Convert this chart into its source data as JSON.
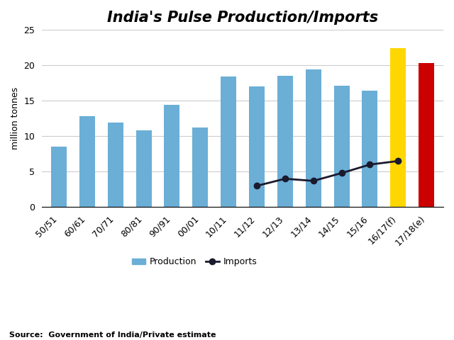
{
  "categories": [
    "50/51",
    "60/61",
    "70/71",
    "80/81",
    "90/91",
    "00/01",
    "10/11",
    "11/12",
    "12/13",
    "13/14",
    "14/15",
    "15/16",
    "16/17(f)",
    "17/18(e)"
  ],
  "production": [
    8.5,
    12.8,
    11.9,
    10.8,
    14.4,
    11.2,
    18.4,
    17.0,
    18.5,
    19.4,
    17.1,
    16.4,
    22.4,
    20.3
  ],
  "bar_colors": [
    "#6baed6",
    "#6baed6",
    "#6baed6",
    "#6baed6",
    "#6baed6",
    "#6baed6",
    "#6baed6",
    "#6baed6",
    "#6baed6",
    "#6baed6",
    "#6baed6",
    "#6baed6",
    "#FFD700",
    "#CC0000"
  ],
  "imports_x": [
    7,
    8,
    9,
    10,
    11,
    12
  ],
  "imports_y": [
    3.0,
    4.0,
    3.7,
    4.8,
    6.0,
    6.5
  ],
  "title": "India's Pulse Production/Imports",
  "ylabel": "million tonnes",
  "source_text": "Source:  Government of India/Private estimate",
  "ylim": [
    0,
    25
  ],
  "yticks": [
    0,
    5,
    10,
    15,
    20,
    25
  ],
  "production_legend_color": "#6baed6",
  "imports_line_color": "#1a1a2e",
  "background_color": "#ffffff",
  "grid_color": "#cccccc",
  "bar_width": 0.55
}
